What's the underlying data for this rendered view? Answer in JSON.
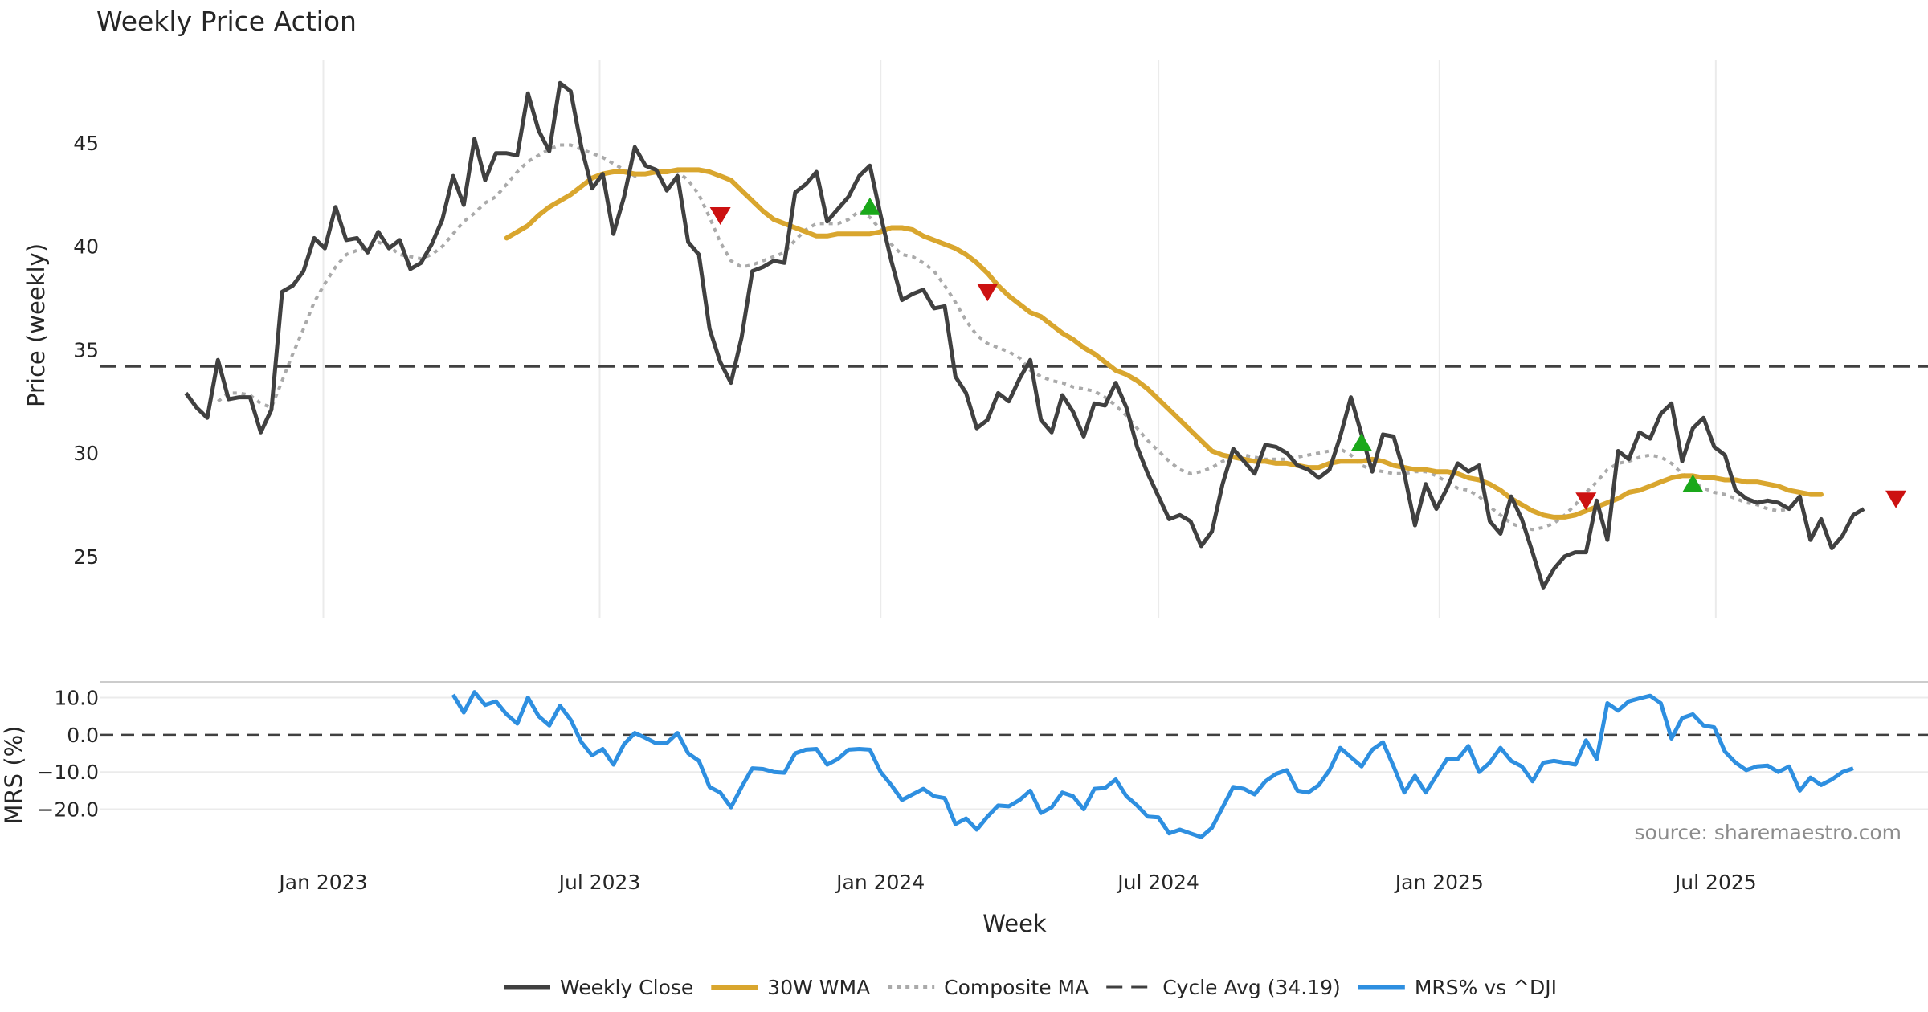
{
  "chart_data": {
    "type": "line",
    "title": "Weekly Price Action",
    "xlabel": "Week",
    "source": "source: sharemaestro.com",
    "colors": {
      "close": "#404040",
      "wma": "#D9A62E",
      "composite": "#AAAAAA",
      "cycle": "#404040",
      "mrs": "#2E8FE0",
      "buy": "#1AA81A",
      "sell": "#CC1111",
      "grid": "#EBEBEB"
    },
    "x_axis": {
      "start": "2022-10-03",
      "end": "2025-11-03",
      "ticks": [
        {
          "date": "2023-01-01",
          "label": "Jan 2023"
        },
        {
          "date": "2023-07-01",
          "label": "Jul 2023"
        },
        {
          "date": "2024-01-01",
          "label": "Jan 2024"
        },
        {
          "date": "2024-07-01",
          "label": "Jul 2024"
        },
        {
          "date": "2025-01-01",
          "label": "Jan 2025"
        },
        {
          "date": "2025-07-01",
          "label": "Jul 2025"
        }
      ]
    },
    "price_panel": {
      "ylabel": "Price (weekly)",
      "ylim": [
        22,
        49
      ],
      "yticks": [
        25,
        30,
        35,
        40,
        45
      ],
      "cycle_avg": 34.19,
      "start_date": "2022-10-03",
      "weekly_close": [
        32.9,
        32.2,
        31.7,
        34.5,
        32.6,
        32.7,
        32.7,
        31.0,
        32.1,
        37.8,
        38.1,
        38.8,
        40.4,
        39.9,
        41.9,
        40.3,
        40.4,
        39.7,
        40.7,
        39.9,
        40.3,
        38.9,
        39.2,
        40.1,
        41.3,
        43.4,
        42.0,
        45.2,
        43.2,
        44.5,
        44.5,
        44.4,
        47.4,
        45.6,
        44.6,
        47.9,
        47.5,
        44.8,
        42.8,
        43.5,
        40.6,
        42.4,
        44.8,
        43.9,
        43.7,
        42.7,
        43.4,
        40.2,
        39.6,
        36.0,
        34.4,
        33.4,
        35.6,
        38.8,
        39.0,
        39.3,
        39.2,
        42.6,
        43.0,
        43.6,
        41.2,
        41.8,
        42.4,
        43.4,
        43.9,
        41.5,
        39.3,
        37.4,
        37.7,
        37.9,
        37.0,
        37.1,
        33.7,
        32.9,
        31.2,
        31.6,
        32.9,
        32.5,
        33.6,
        34.5,
        31.6,
        31.0,
        32.8,
        32.0,
        30.8,
        32.4,
        32.3,
        33.4,
        32.2,
        30.3,
        29.0,
        27.9,
        26.8,
        27.0,
        26.7,
        25.5,
        26.2,
        28.5,
        30.2,
        29.6,
        29.0,
        30.4,
        30.3,
        30.0,
        29.4,
        29.2,
        28.8,
        29.2,
        30.8,
        32.7,
        30.9,
        29.1,
        30.9,
        30.8,
        29.0,
        26.5,
        28.5,
        27.3,
        28.3,
        29.5,
        29.1,
        29.4,
        26.7,
        26.1,
        27.9,
        26.8,
        25.2,
        23.5,
        24.4,
        25.0,
        25.2,
        25.2,
        27.7,
        25.8,
        30.1,
        29.7,
        31.0,
        30.7,
        31.9,
        32.4,
        29.6,
        31.2,
        31.7,
        30.3,
        29.9,
        28.2,
        27.8,
        27.6,
        27.7,
        27.6,
        27.3,
        27.9,
        25.8,
        26.8,
        25.4,
        26.0,
        27.0,
        27.3
      ],
      "wma_30w_start_index": 30,
      "wma_30w": [
        40.4,
        40.7,
        41.0,
        41.5,
        41.9,
        42.2,
        42.5,
        42.9,
        43.3,
        43.5,
        43.6,
        43.6,
        43.5,
        43.5,
        43.6,
        43.6,
        43.7,
        43.7,
        43.7,
        43.6,
        43.4,
        43.2,
        42.7,
        42.2,
        41.7,
        41.3,
        41.1,
        40.9,
        40.7,
        40.5,
        40.5,
        40.6,
        40.6,
        40.6,
        40.6,
        40.7,
        40.9,
        40.9,
        40.8,
        40.5,
        40.3,
        40.1,
        39.9,
        39.6,
        39.2,
        38.7,
        38.1,
        37.6,
        37.2,
        36.8,
        36.6,
        36.2,
        35.8,
        35.5,
        35.1,
        34.8,
        34.4,
        34.0,
        33.8,
        33.5,
        33.1,
        32.6,
        32.1,
        31.6,
        31.1,
        30.6,
        30.1,
        29.9,
        29.8,
        29.7,
        29.6,
        29.6,
        29.5,
        29.5,
        29.4,
        29.3,
        29.3,
        29.5,
        29.6,
        29.6,
        29.6,
        29.7,
        29.6,
        29.4,
        29.3,
        29.2,
        29.2,
        29.1,
        29.1,
        29.0,
        28.8,
        28.7,
        28.5,
        28.2,
        27.8,
        27.5,
        27.2,
        27.0,
        26.9,
        26.9,
        27.0,
        27.2,
        27.4,
        27.6,
        27.8,
        28.1,
        28.2,
        28.4,
        28.6,
        28.8,
        28.9,
        28.9,
        28.8,
        28.8,
        28.7,
        28.7,
        28.6,
        28.6,
        28.5,
        28.4,
        28.2,
        28.1,
        28.0,
        28.0
      ],
      "composite_ma_start_index": 3,
      "composite_ma": [
        32.5,
        32.9,
        32.9,
        32.8,
        32.4,
        32.2,
        33.5,
        34.8,
        36.0,
        37.3,
        38.2,
        39.0,
        39.6,
        39.8,
        40.0,
        40.2,
        40.0,
        39.6,
        39.5,
        39.4,
        39.6,
        40.0,
        40.6,
        41.2,
        41.6,
        42.1,
        42.4,
        43.0,
        43.6,
        44.1,
        44.4,
        44.7,
        44.9,
        44.9,
        44.7,
        44.5,
        44.3,
        44.0,
        43.7,
        43.4,
        43.5,
        43.7,
        43.6,
        43.6,
        43.2,
        42.5,
        41.4,
        40.2,
        39.3,
        39.0,
        39.1,
        39.3,
        39.5,
        39.7,
        40.3,
        40.8,
        41.1,
        41.1,
        41.1,
        41.3,
        41.7,
        41.4,
        40.8,
        40.1,
        39.6,
        39.5,
        39.2,
        38.8,
        38.1,
        37.3,
        36.4,
        35.7,
        35.3,
        35.1,
        34.9,
        34.6,
        34.0,
        33.7,
        33.5,
        33.4,
        33.2,
        33.1,
        33.0,
        32.7,
        32.3,
        31.8,
        31.2,
        30.6,
        30.1,
        29.6,
        29.2,
        29.0,
        29.1,
        29.3,
        29.6,
        29.8,
        29.9,
        29.8,
        29.7,
        29.7,
        29.7,
        29.8,
        29.9,
        30.0,
        30.1,
        30.2,
        29.9,
        29.4,
        29.2,
        29.1,
        29.0,
        29.0,
        29.1,
        29.1,
        28.9,
        28.6,
        28.3,
        28.2,
        27.9,
        27.4,
        27.0,
        26.6,
        26.4,
        26.3,
        26.4,
        26.6,
        27.0,
        27.5,
        28.1,
        28.6,
        29.2,
        29.5,
        29.6,
        29.8,
        29.9,
        29.8,
        29.5,
        29.0,
        28.6,
        28.3,
        28.1,
        28.0,
        27.8,
        27.6,
        27.5,
        27.3,
        27.2,
        27.3
      ],
      "buy_signals": [
        {
          "index": 64,
          "value": 41.9
        },
        {
          "index": 110,
          "value": 30.5
        },
        {
          "index": 141,
          "value": 28.5
        }
      ],
      "sell_signals": [
        {
          "index": 50,
          "value": 41.5
        },
        {
          "index": 75,
          "value": 37.8
        },
        {
          "index": 131,
          "value": 27.7
        },
        {
          "index": 160,
          "value": 27.8
        }
      ]
    },
    "mrs_panel": {
      "ylabel": "MRS (%)",
      "ylim": [
        -27,
        14
      ],
      "yticks": [
        10,
        0,
        -10,
        -20
      ],
      "ytick_labels": [
        "10.0",
        "0.0",
        "−10.0",
        "−20.0"
      ],
      "baseline": 0,
      "start_index": 25,
      "series_name": "MRS% vs ^DJI",
      "values": [
        10.8,
        6.0,
        11.5,
        8.0,
        9.0,
        5.5,
        3.0,
        10.0,
        5.0,
        2.5,
        7.8,
        4.0,
        -2.0,
        -5.5,
        -3.8,
        -8.0,
        -2.5,
        0.5,
        -0.8,
        -2.3,
        -2.2,
        0.5,
        -5.0,
        -7.0,
        -14.0,
        -15.5,
        -19.5,
        -14.0,
        -9.0,
        -9.2,
        -10.0,
        -10.2,
        -5.0,
        -4.0,
        -3.8,
        -8.0,
        -6.5,
        -4.0,
        -3.8,
        -4.0,
        -10.0,
        -13.5,
        -17.5,
        -16.0,
        -14.5,
        -16.5,
        -17.0,
        -24.0,
        -22.5,
        -25.5,
        -22.0,
        -19.0,
        -19.2,
        -17.5,
        -15.0,
        -21.0,
        -19.5,
        -15.5,
        -16.5,
        -20.0,
        -14.5,
        -14.3,
        -12.0,
        -16.5,
        -19.0,
        -22.0,
        -22.2,
        -26.5,
        -25.5,
        -26.5,
        -27.5,
        -25.0,
        -19.5,
        -14.0,
        -14.5,
        -16.0,
        -12.5,
        -10.5,
        -9.5,
        -15.0,
        -15.5,
        -13.5,
        -9.5,
        -3.5,
        -6.0,
        -8.5,
        -4.0,
        -2.0,
        -8.5,
        -15.5,
        -11.0,
        -15.5,
        -11.0,
        -6.5,
        -6.5,
        -3.0,
        -10.0,
        -7.5,
        -3.5,
        -7.0,
        -8.5,
        -12.5,
        -7.5,
        -7.0,
        -7.5,
        -8.0,
        -1.5,
        -6.5,
        8.5,
        6.5,
        9.0,
        9.8,
        10.5,
        8.5,
        -1.0,
        4.5,
        5.5,
        2.5,
        2.0,
        -4.5,
        -7.5,
        -9.5,
        -8.5,
        -8.3,
        -10.0,
        -8.5,
        -15.0,
        -11.5,
        -13.5,
        -12.0,
        -10.0,
        -9.0
      ]
    },
    "legend": {
      "placement": "bottom-center",
      "entries": [
        {
          "key": "close",
          "label": "Weekly Close"
        },
        {
          "key": "wma",
          "label": "30W WMA"
        },
        {
          "key": "composite",
          "label": "Composite MA"
        },
        {
          "key": "cycle",
          "label": "Cycle Avg (34.19)"
        },
        {
          "key": "mrs",
          "label": "MRS% vs ^DJI"
        }
      ]
    }
  }
}
